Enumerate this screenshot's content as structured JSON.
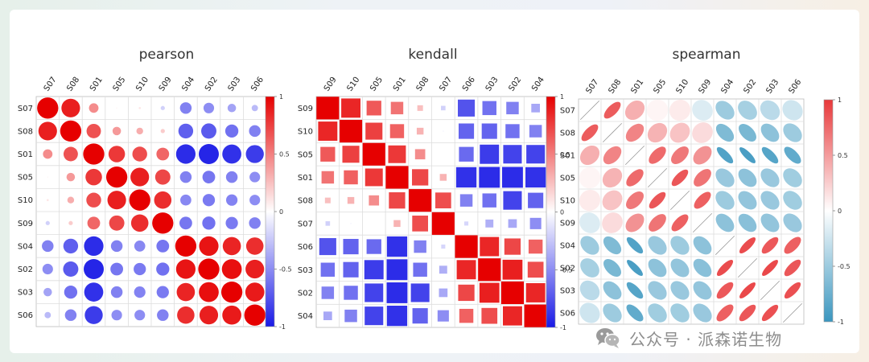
{
  "chart_data": [
    {
      "type": "heatmap",
      "title": "pearson",
      "glyph": "circle",
      "order": [
        "S07",
        "S08",
        "S01",
        "S05",
        "S10",
        "S09",
        "S04",
        "S02",
        "S03",
        "S06"
      ],
      "values": [
        [
          1.0,
          0.88,
          0.45,
          0.05,
          0.1,
          -0.2,
          -0.55,
          -0.5,
          -0.4,
          -0.3
        ],
        [
          0.88,
          1.0,
          0.68,
          0.4,
          0.32,
          0.2,
          -0.7,
          -0.72,
          -0.62,
          -0.55
        ],
        [
          0.45,
          0.68,
          1.0,
          0.78,
          0.7,
          0.6,
          -0.92,
          -0.95,
          -0.9,
          -0.85
        ],
        [
          0.05,
          0.4,
          0.78,
          1.0,
          0.88,
          0.72,
          -0.55,
          -0.6,
          -0.55,
          -0.5
        ],
        [
          0.1,
          0.32,
          0.7,
          0.88,
          1.0,
          0.82,
          -0.52,
          -0.58,
          -0.54,
          -0.5
        ],
        [
          -0.2,
          0.2,
          0.6,
          0.72,
          0.82,
          1.0,
          -0.6,
          -0.62,
          -0.58,
          -0.55
        ],
        [
          -0.55,
          -0.7,
          -0.92,
          -0.55,
          -0.52,
          -0.6,
          1.0,
          0.92,
          0.86,
          0.82
        ],
        [
          -0.5,
          -0.72,
          -0.95,
          -0.6,
          -0.58,
          -0.62,
          0.92,
          1.0,
          0.94,
          0.88
        ],
        [
          -0.4,
          -0.62,
          -0.9,
          -0.55,
          -0.54,
          -0.58,
          0.86,
          0.94,
          1.0,
          0.9
        ],
        [
          -0.3,
          -0.55,
          -0.85,
          -0.5,
          -0.5,
          -0.55,
          0.82,
          0.88,
          0.9,
          1.0
        ]
      ],
      "colorbar": {
        "min": -1,
        "max": 1,
        "ticks": [
          "1",
          "0.5",
          "0",
          "-0.5",
          "-1"
        ]
      },
      "colors": {
        "neg": "#1a1ae6",
        "mid": "#ffffff",
        "pos": "#e60000"
      }
    },
    {
      "type": "heatmap",
      "title": "kendall",
      "glyph": "square",
      "order": [
        "S09",
        "S10",
        "S05",
        "S01",
        "S08",
        "S07",
        "S06",
        "S03",
        "S02",
        "S04"
      ],
      "values": [
        [
          1.0,
          0.85,
          0.65,
          0.55,
          0.25,
          -0.2,
          -0.75,
          -0.62,
          -0.55,
          -0.38
        ],
        [
          0.85,
          1.0,
          0.75,
          0.62,
          0.3,
          -0.05,
          -0.68,
          -0.68,
          -0.62,
          -0.55
        ],
        [
          0.65,
          0.75,
          1.0,
          0.78,
          0.45,
          0.0,
          -0.65,
          -0.85,
          -0.82,
          -0.82
        ],
        [
          0.55,
          0.62,
          0.78,
          1.0,
          0.72,
          0.3,
          -0.9,
          -0.92,
          -0.92,
          -0.9
        ],
        [
          0.25,
          0.3,
          0.45,
          0.72,
          1.0,
          0.7,
          -0.55,
          -0.62,
          -0.82,
          -0.68
        ],
        [
          -0.2,
          -0.05,
          0.0,
          0.3,
          0.7,
          1.0,
          -0.18,
          -0.35,
          -0.38,
          -0.5
        ],
        [
          -0.75,
          -0.68,
          -0.65,
          -0.9,
          -0.55,
          -0.18,
          1.0,
          0.85,
          0.72,
          0.62
        ],
        [
          -0.62,
          -0.68,
          -0.85,
          -0.92,
          -0.62,
          -0.35,
          0.85,
          1.0,
          0.88,
          0.7
        ],
        [
          -0.55,
          -0.62,
          -0.82,
          -0.92,
          -0.82,
          -0.38,
          0.72,
          0.88,
          1.0,
          0.85
        ],
        [
          -0.38,
          -0.55,
          -0.82,
          -0.9,
          -0.68,
          -0.5,
          0.62,
          0.7,
          0.85,
          1.0
        ]
      ],
      "colorbar": {
        "min": -1,
        "max": 1,
        "ticks": [
          "1",
          "0.5",
          "0",
          "-0.5",
          "-1"
        ]
      },
      "colors": {
        "neg": "#1a1ae6",
        "mid": "#ffffff",
        "pos": "#e60000"
      }
    },
    {
      "type": "heatmap",
      "title": "spearman",
      "glyph": "ellipse",
      "order": [
        "S07",
        "S08",
        "S01",
        "S05",
        "S10",
        "S09",
        "S04",
        "S02",
        "S03",
        "S06"
      ],
      "values": [
        [
          1.0,
          0.82,
          0.4,
          0.05,
          0.1,
          -0.18,
          -0.5,
          -0.45,
          -0.35,
          -0.25
        ],
        [
          0.82,
          1.0,
          0.62,
          0.38,
          0.3,
          0.18,
          -0.65,
          -0.68,
          -0.58,
          -0.5
        ],
        [
          0.4,
          0.62,
          1.0,
          0.75,
          0.68,
          0.55,
          -0.88,
          -0.92,
          -0.86,
          -0.8
        ],
        [
          0.05,
          0.38,
          0.75,
          1.0,
          0.85,
          0.7,
          -0.52,
          -0.58,
          -0.52,
          -0.48
        ],
        [
          0.1,
          0.3,
          0.68,
          0.85,
          1.0,
          0.8,
          -0.5,
          -0.55,
          -0.52,
          -0.48
        ],
        [
          -0.18,
          0.18,
          0.55,
          0.7,
          0.8,
          1.0,
          -0.58,
          -0.6,
          -0.55,
          -0.52
        ],
        [
          -0.5,
          -0.65,
          -0.88,
          -0.52,
          -0.5,
          -0.58,
          1.0,
          0.9,
          0.84,
          0.8
        ],
        [
          -0.45,
          -0.68,
          -0.92,
          -0.58,
          -0.55,
          -0.6,
          0.9,
          1.0,
          0.92,
          0.85
        ],
        [
          -0.35,
          -0.58,
          -0.86,
          -0.52,
          -0.52,
          -0.55,
          0.84,
          0.92,
          1.0,
          0.88
        ],
        [
          -0.25,
          -0.5,
          -0.8,
          -0.48,
          -0.48,
          -0.52,
          0.8,
          0.85,
          0.88,
          1.0
        ]
      ],
      "colorbar": {
        "min": -1,
        "max": 1,
        "ticks": [
          "1",
          "0.5",
          "0",
          "-0.5",
          "-1"
        ]
      },
      "colors": {
        "neg": "#3a96bf",
        "mid": "#ffffff",
        "pos": "#e8383a"
      }
    }
  ],
  "watermark": {
    "text": "公众号 · 派森诺生物",
    "icon": "wechat-icon"
  }
}
